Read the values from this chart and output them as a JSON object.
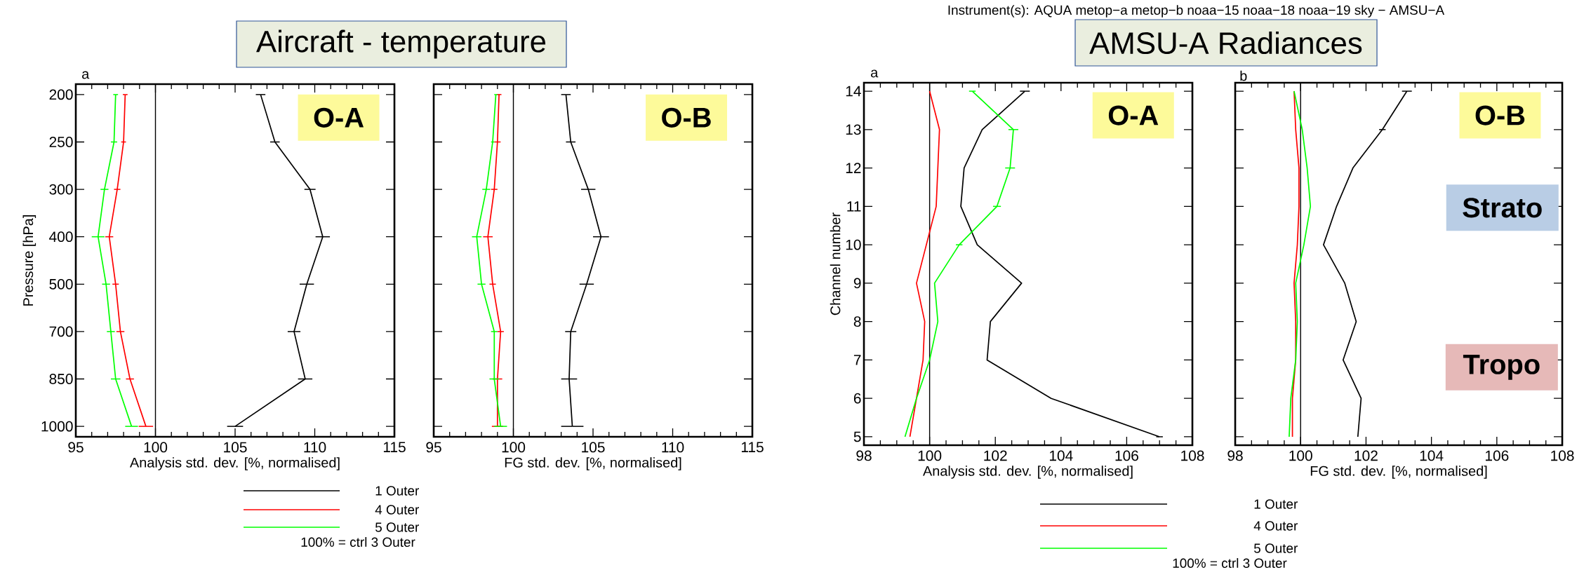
{
  "chart_data": [
    {
      "type": "line",
      "orientation": "horizontal",
      "title": "Aircraft - temperature",
      "xlabel": "Analysis std. dev. [%, normalised]",
      "ylabel": "Pressure [hPa]",
      "categories": [
        "200",
        "250",
        "300",
        "400",
        "500",
        "700",
        "850",
        "1000"
      ],
      "xlim": [
        95,
        115
      ],
      "xticks": [
        95,
        100,
        105,
        110,
        115
      ],
      "legend": "bottom",
      "ref_lines": [
        {
          "axis": "x",
          "value": 100
        }
      ],
      "annotations": [
        "a",
        "O-A",
        "100% = ctrl 3 Outer"
      ],
      "series": [
        {
          "name": "1 Outer",
          "color": "#000000",
          "values": [
            106.6,
            107.5,
            109.7,
            110.5,
            109.5,
            108.7,
            109.4,
            105.0
          ],
          "errors": [
            0.3,
            0.3,
            0.35,
            0.45,
            0.45,
            0.4,
            0.45,
            0.5
          ]
        },
        {
          "name": "4 Outer",
          "color": "#ff0000",
          "values": [
            98.1,
            98.0,
            97.6,
            97.1,
            97.5,
            97.8,
            98.4,
            99.4
          ],
          "errors": [
            0.15,
            0.15,
            0.2,
            0.25,
            0.2,
            0.25,
            0.25,
            0.45
          ]
        },
        {
          "name": "5 Outer",
          "color": "#00ff00",
          "values": [
            97.5,
            97.4,
            96.8,
            96.4,
            96.9,
            97.2,
            97.5,
            98.5
          ],
          "errors": [
            0.15,
            0.2,
            0.25,
            0.4,
            0.25,
            0.25,
            0.3,
            0.4
          ]
        }
      ]
    },
    {
      "type": "line",
      "orientation": "horizontal",
      "xlabel": "FG std. dev. [%, normalised]",
      "categories": [
        "200",
        "250",
        "300",
        "400",
        "500",
        "700",
        "850",
        "1000"
      ],
      "tick_labels": "x",
      "xlim": [
        95,
        115
      ],
      "xticks": [
        95,
        100,
        105,
        110,
        115
      ],
      "ref_lines": [
        {
          "axis": "x",
          "value": 100
        }
      ],
      "annotations": [
        "O-B"
      ],
      "series": [
        {
          "color": "#000000",
          "values": [
            103.3,
            103.6,
            104.7,
            105.5,
            104.6,
            103.6,
            103.5,
            103.7
          ],
          "errors": [
            0.3,
            0.3,
            0.45,
            0.5,
            0.45,
            0.35,
            0.5,
            0.7
          ]
        },
        {
          "color": "#ff0000",
          "values": [
            99.1,
            99.0,
            98.8,
            98.4,
            98.7,
            99.2,
            99.0,
            99.0
          ],
          "errors": [
            0.15,
            0.2,
            0.2,
            0.3,
            0.2,
            0.2,
            0.3,
            0.35
          ]
        },
        {
          "color": "#00ff00",
          "values": [
            98.9,
            98.7,
            98.3,
            97.7,
            98.0,
            98.8,
            98.8,
            99.2
          ],
          "errors": [
            0.1,
            0.1,
            0.25,
            0.3,
            0.25,
            0.2,
            0.3,
            0.4
          ]
        }
      ]
    },
    {
      "type": "line",
      "orientation": "horizontal",
      "title": "AMSU-A Radiances",
      "subtitle": "Instrument(s): AQUA metop−a metop−b noaa−15 noaa−18 noaa−19 sky − AMSU−A",
      "xlabel": "Analysis std. dev. [%, normalised]",
      "ylabel": "Channel number",
      "categories": [
        "14",
        "13",
        "12",
        "11",
        "10",
        "9",
        "8",
        "7",
        "6",
        "5"
      ],
      "xlim": [
        98,
        108
      ],
      "xticks": [
        98,
        100,
        102,
        104,
        106,
        108
      ],
      "legend": "bottom",
      "ref_lines": [
        {
          "axis": "x",
          "value": 100
        }
      ],
      "annotations": [
        "a",
        "O-A",
        "100% = ctrl 3 Outer"
      ],
      "series": [
        {
          "name": "1 Outer",
          "color": "#000000",
          "values": [
            102.9,
            101.6,
            101.05,
            100.95,
            101.45,
            102.8,
            101.85,
            101.75,
            103.7,
            107.0
          ],
          "errors": [
            0.15,
            null,
            null,
            null,
            null,
            null,
            null,
            null,
            null,
            0.1
          ]
        },
        {
          "name": "4 Outer",
          "color": "#ff0000",
          "values": [
            100.0,
            100.3,
            100.25,
            100.2,
            99.9,
            99.6,
            99.85,
            99.8,
            99.6,
            99.4
          ]
        },
        {
          "name": "5 Outer",
          "color": "#00ff00",
          "values": [
            101.3,
            102.55,
            102.45,
            102.05,
            100.9,
            100.15,
            100.25,
            100.0,
            99.6,
            99.25
          ],
          "errors": [
            0.1,
            0.15,
            0.15,
            0.12,
            0.1,
            null,
            null,
            null,
            null,
            null
          ]
        }
      ]
    },
    {
      "type": "line",
      "orientation": "horizontal",
      "xlabel": "FG std. dev. [%, normalised]",
      "categories": [
        "14",
        "13",
        "12",
        "11",
        "10",
        "9",
        "8",
        "7",
        "6",
        "5"
      ],
      "tick_labels": "x",
      "xlim": [
        98,
        108
      ],
      "xticks": [
        98,
        100,
        102,
        104,
        106,
        108
      ],
      "ref_lines": [
        {
          "axis": "x",
          "value": 100
        }
      ],
      "annotations": [
        "b",
        "O-B",
        "Strato",
        "Tropo"
      ],
      "series": [
        {
          "color": "#000000",
          "values": [
            103.25,
            102.5,
            101.6,
            101.1,
            100.7,
            101.35,
            101.7,
            101.3,
            101.85,
            101.75
          ],
          "errors": [
            0.15,
            0.1,
            null,
            null,
            null,
            null,
            null,
            null,
            null,
            null
          ]
        },
        {
          "color": "#ff0000",
          "values": [
            99.8,
            99.85,
            99.95,
            99.95,
            99.9,
            99.8,
            99.85,
            99.85,
            99.75,
            99.75
          ]
        },
        {
          "color": "#00ff00",
          "values": [
            99.8,
            100.05,
            100.2,
            100.3,
            100.1,
            99.85,
            99.9,
            99.85,
            99.7,
            99.65
          ]
        }
      ]
    }
  ]
}
